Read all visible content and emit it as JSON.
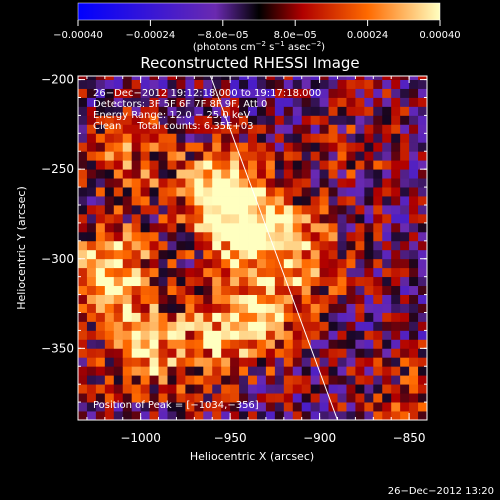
{
  "chart_data": {
    "type": "heatmap",
    "title": "Reconstructed RHESSI Image",
    "xlabel": "Heliocentric X (arcsec)",
    "ylabel": "Heliocentric Y (arcsec)",
    "xlim": [
      -1035,
      -840
    ],
    "ylim": [
      -390,
      -198
    ],
    "x_ticks": [
      -1000,
      -950,
      -900,
      -850
    ],
    "x_tick_labels": [
      "−1000",
      "−950",
      "−900",
      "−850"
    ],
    "y_ticks": [
      -200,
      -250,
      -300,
      -350
    ],
    "y_tick_labels": [
      "−200",
      "−250",
      "−300",
      "−350"
    ],
    "colorbar": {
      "min": -0.0004,
      "max": 0.0004,
      "ticks": [
        -0.0004,
        -0.00024,
        -8e-05,
        8e-05,
        0.00024,
        0.0004
      ],
      "tick_labels": [
        "−0.00040",
        "−0.00024",
        "−8.0e−05",
        "8.0e−05",
        "0.00024",
        "0.00040"
      ],
      "unit_main": "(photons cm",
      "unit_sup1": "−2",
      "unit_mid1": " s",
      "unit_sup2": "−1",
      "unit_mid2": " asec",
      "unit_sup3": "−2",
      "unit_end": ")"
    },
    "limb_line": {
      "x": [
        -961,
        -890
      ],
      "y": [
        -198,
        -390
      ]
    },
    "peak": {
      "x": -1034,
      "y": -356
    },
    "peak_label": "Position of Peak = [−1034,−356]",
    "hot_spots": [
      {
        "x": -940,
        "y": -285,
        "value": 0.0004
      },
      {
        "x": -960,
        "y": -265,
        "value": 0.00035
      },
      {
        "x": -1020,
        "y": -310,
        "value": 0.00038
      },
      {
        "x": -1000,
        "y": -355,
        "value": 0.0003
      },
      {
        "x": -955,
        "y": -345,
        "value": 0.00028
      },
      {
        "x": -930,
        "y": -330,
        "value": 0.00024
      },
      {
        "x": -1010,
        "y": -245,
        "value": 0.0002
      },
      {
        "x": -905,
        "y": -300,
        "value": 0.00018
      },
      {
        "x": -880,
        "y": -240,
        "value": 0.00012
      },
      {
        "x": -860,
        "y": -380,
        "value": 0.00016
      }
    ],
    "colors": {
      "negative": "#0000ff",
      "mid": "#6a2ab0",
      "positive_low": "#b00000",
      "positive_mid": "#ff6a00",
      "positive_high": "#ffffb0"
    }
  },
  "info": {
    "line1": "26−Dec−2012 19:12:18.000 to 19:17:18.000",
    "line2": "Detectors: 3F 5F 6F 7F 8F 9F, Att 0",
    "line3": "Energy Range: 12.0 − 25.0 keV",
    "line4": "Clean     Total counts: 6.35E+03"
  },
  "footer": {
    "timestamp": "26−Dec−2012 13:20"
  }
}
